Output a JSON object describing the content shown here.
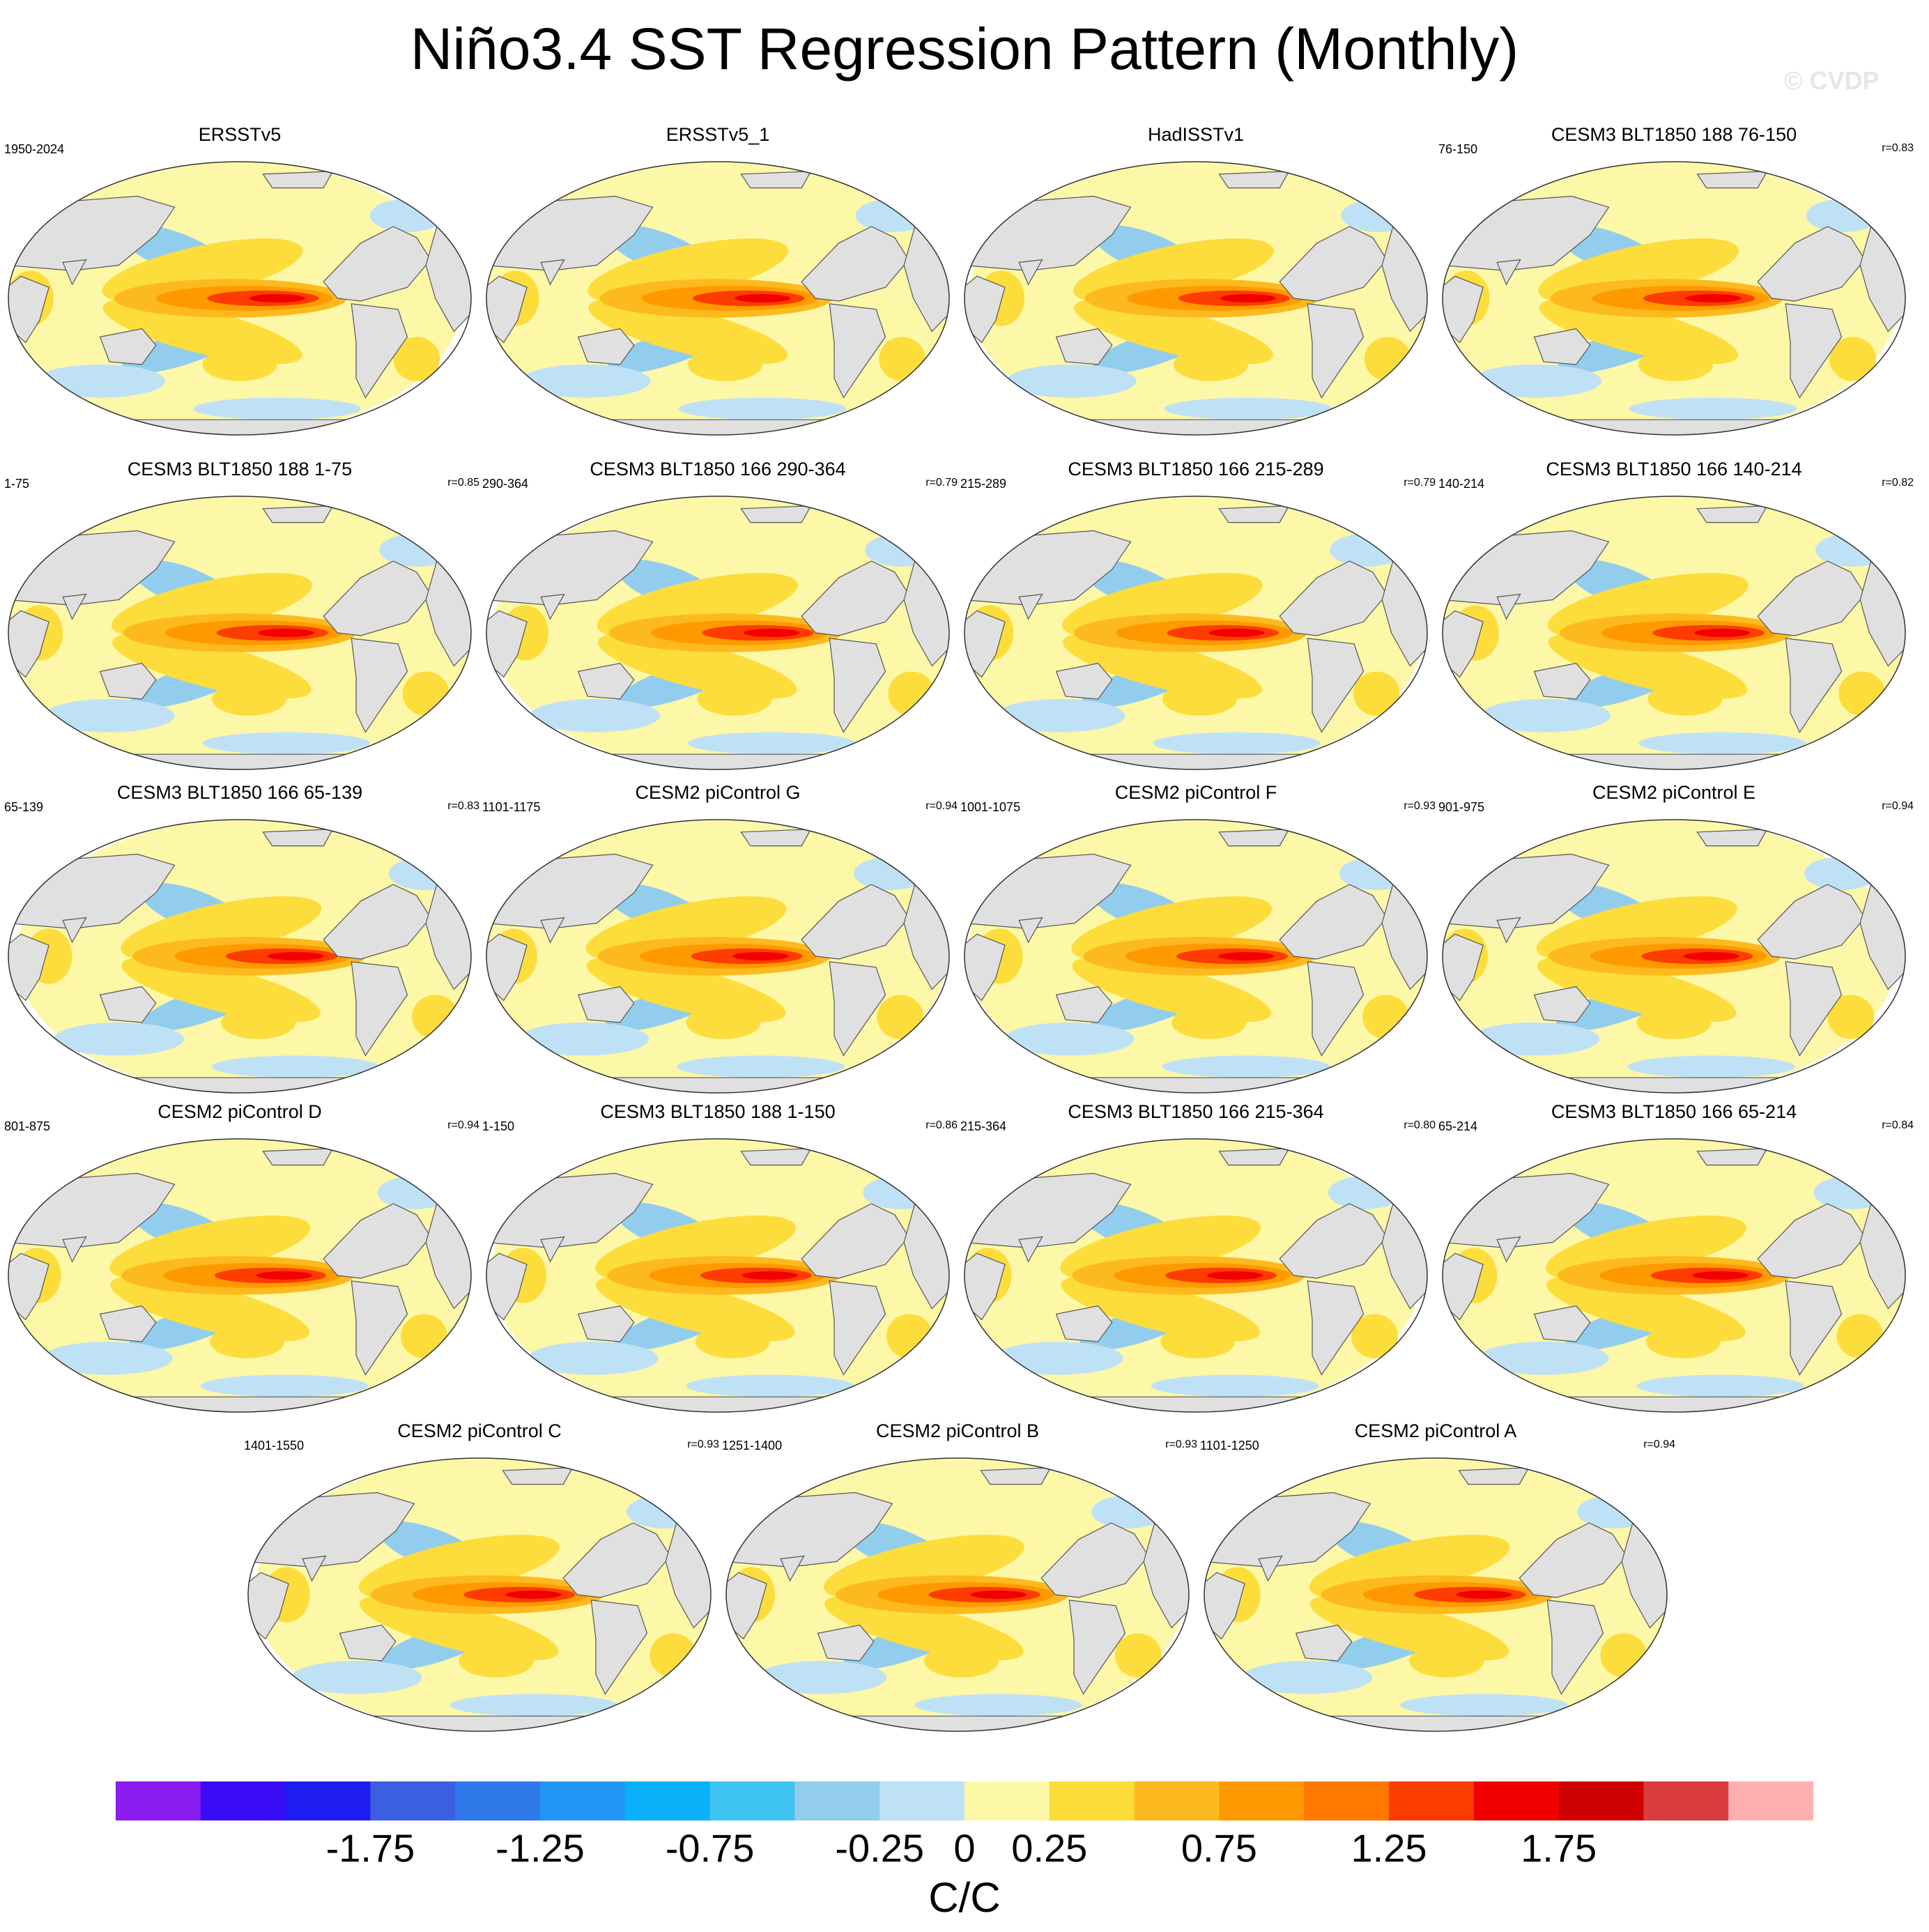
{
  "title": "Niño3.4 SST Regression Pattern (Monthly)",
  "watermark": "© CVDP",
  "chart_data": {
    "type": "heatmap",
    "title": "Niño3.4 SST Regression Pattern (Monthly)",
    "projection": "Robinson world map, Pacific-centered",
    "panels": [
      {
        "title": "ERSSTv5",
        "period": "1950-2024",
        "corr": ""
      },
      {
        "title": "ERSSTv5_1",
        "period": "",
        "corr": ""
      },
      {
        "title": "HadISSTv1",
        "period": "",
        "corr": ""
      },
      {
        "title": "CESM3 BLT1850 188 76-150",
        "period": "76-150",
        "corr": "r=0.83"
      },
      {
        "title": "CESM3 BLT1850 188 1-75",
        "period": "1-75",
        "corr": "r=0.85"
      },
      {
        "title": "CESM3 BLT1850 166 290-364",
        "period": "290-364",
        "corr": "r=0.79"
      },
      {
        "title": "CESM3 BLT1850 166 215-289",
        "period": "215-289",
        "corr": "r=0.79"
      },
      {
        "title": "CESM3 BLT1850 166 140-214",
        "period": "140-214",
        "corr": "r=0.82"
      },
      {
        "title": "CESM3 BLT1850 166 65-139",
        "period": "65-139",
        "corr": "r=0.83"
      },
      {
        "title": "CESM2 piControl G",
        "period": "1101-1175",
        "corr": "r=0.94"
      },
      {
        "title": "CESM2 piControl F",
        "period": "1001-1075",
        "corr": "r=0.93"
      },
      {
        "title": "CESM2 piControl E",
        "period": "901-975",
        "corr": "r=0.94"
      },
      {
        "title": "CESM2 piControl D",
        "period": "801-875",
        "corr": "r=0.94"
      },
      {
        "title": "CESM3 BLT1850 188 1-150",
        "period": "1-150",
        "corr": "r=0.86"
      },
      {
        "title": "CESM3 BLT1850 166 215-364",
        "period": "215-364",
        "corr": "r=0.80"
      },
      {
        "title": "CESM3 BLT1850 166 65-214",
        "period": "65-214",
        "corr": "r=0.84"
      },
      {
        "title": "CESM2 piControl C",
        "period": "1401-1550",
        "corr": "r=0.93"
      },
      {
        "title": "CESM2 piControl B",
        "period": "1251-1400",
        "corr": "r=0.93"
      },
      {
        "title": "CESM2 piControl A",
        "period": "1101-1250",
        "corr": "r=0.94"
      }
    ],
    "colorbar": {
      "levels": [
        -2.0,
        -1.75,
        -1.5,
        -1.25,
        -1.0,
        -0.75,
        -0.5,
        -0.25,
        0.0,
        0.25,
        0.5,
        0.75,
        1.0,
        1.25,
        1.5,
        1.75,
        2.0
      ],
      "colors": [
        "#8a1cf0",
        "#3a0bf5",
        "#1e1ef2",
        "#3c5ee0",
        "#2f79ea",
        "#2296f6",
        "#0ab0f8",
        "#3fc3f1",
        "#93cdee",
        "#bfe1f6",
        "#fdf7a8",
        "#fddd3b",
        "#fdba1e",
        "#fe9a00",
        "#fe7800",
        "#fd3c00",
        "#f10000",
        "#cf0000",
        "#da3b3b",
        "#feb0b0"
      ],
      "tick_labels": [
        "-1.75",
        "-1.25",
        "-0.75",
        "-0.25",
        "0",
        "0.25",
        "0.75",
        "1.25",
        "1.75"
      ],
      "tick_values": [
        -1.75,
        -1.25,
        -0.75,
        -0.25,
        0,
        0.25,
        0.75,
        1.25,
        1.75
      ],
      "units": "C/C"
    }
  }
}
